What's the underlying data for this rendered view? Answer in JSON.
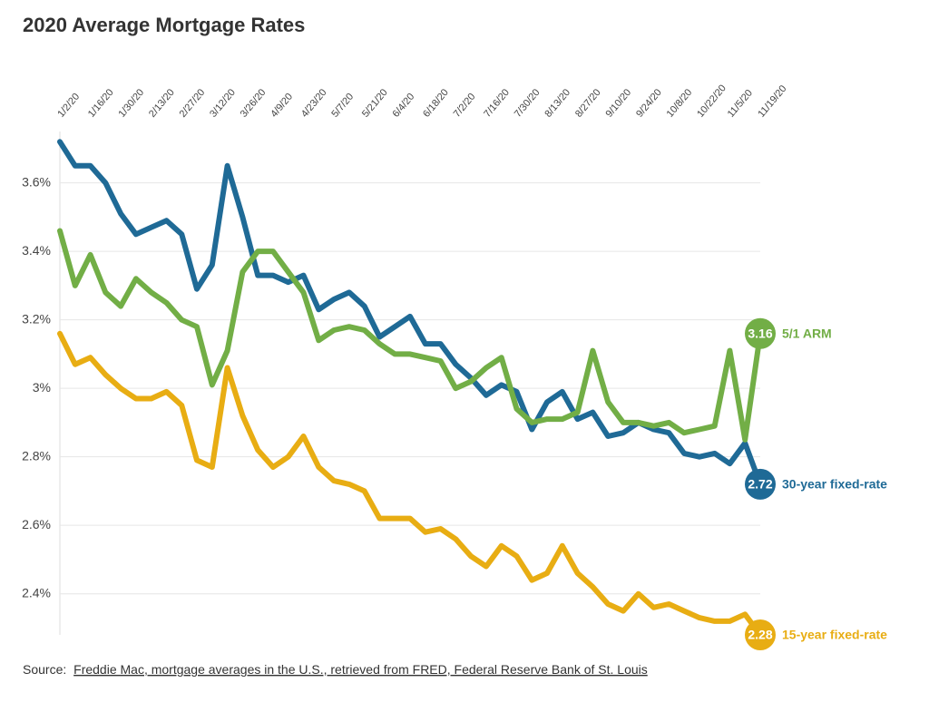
{
  "chart_data": {
    "type": "line",
    "title": "2020 Average Mortgage Rates",
    "categories": [
      "1/2/20",
      null,
      "1/16/20",
      null,
      "1/30/20",
      null,
      "2/13/20",
      null,
      "2/27/20",
      null,
      "3/12/20",
      null,
      "3/26/20",
      null,
      "4/9/20",
      null,
      "4/23/20",
      null,
      "5/7/20",
      null,
      "5/21/20",
      null,
      "6/4/20",
      null,
      "6/18/20",
      null,
      "7/2/20",
      null,
      "7/16/20",
      null,
      "7/30/20",
      null,
      "8/13/20",
      null,
      "8/27/20",
      null,
      "9/10/20",
      null,
      "9/24/20",
      null,
      "10/8/20",
      null,
      "10/22/20",
      null,
      "11/5/20",
      null,
      "11/19/20"
    ],
    "series": [
      {
        "name": "30-year fixed-rate",
        "color": "#1f6a96",
        "values": [
          3.72,
          3.65,
          3.65,
          3.6,
          3.51,
          3.45,
          3.47,
          3.49,
          3.45,
          3.29,
          3.36,
          3.65,
          3.5,
          3.33,
          3.33,
          3.31,
          3.33,
          3.23,
          3.26,
          3.28,
          3.24,
          3.15,
          3.18,
          3.21,
          3.13,
          3.13,
          3.07,
          3.03,
          2.98,
          3.01,
          2.99,
          2.88,
          2.96,
          2.99,
          2.91,
          2.93,
          2.86,
          2.87,
          2.9,
          2.88,
          2.87,
          2.81,
          2.8,
          2.81,
          2.78,
          2.84,
          2.72
        ]
      },
      {
        "name": "15-year fixed-rate",
        "color": "#e8ad13",
        "values": [
          3.16,
          3.07,
          3.09,
          3.04,
          3.0,
          2.97,
          2.97,
          2.99,
          2.95,
          2.79,
          2.77,
          3.06,
          2.92,
          2.82,
          2.77,
          2.8,
          2.86,
          2.77,
          2.73,
          2.72,
          2.7,
          2.62,
          2.62,
          2.62,
          2.58,
          2.59,
          2.56,
          2.51,
          2.48,
          2.54,
          2.51,
          2.44,
          2.46,
          2.54,
          2.46,
          2.42,
          2.37,
          2.35,
          2.4,
          2.36,
          2.37,
          2.35,
          2.33,
          2.32,
          2.32,
          2.34,
          2.28
        ]
      },
      {
        "name": "5/1 ARM",
        "color": "#72ae46",
        "values": [
          3.46,
          3.3,
          3.39,
          3.28,
          3.24,
          3.32,
          3.28,
          3.25,
          3.2,
          3.18,
          3.01,
          3.11,
          3.34,
          3.4,
          3.4,
          3.34,
          3.28,
          3.14,
          3.17,
          3.18,
          3.17,
          3.13,
          3.1,
          3.1,
          3.09,
          3.08,
          3.0,
          3.02,
          3.06,
          3.09,
          2.94,
          2.9,
          2.91,
          2.91,
          2.93,
          3.11,
          2.96,
          2.9,
          2.9,
          2.89,
          2.9,
          2.87,
          2.88,
          2.89,
          3.11,
          2.85,
          3.16
        ]
      }
    ],
    "ylim": [
      2.28,
      3.75
    ],
    "yticks": [
      {
        "value": 2.4,
        "label": "2.4%"
      },
      {
        "value": 2.6,
        "label": "2.6%"
      },
      {
        "value": 2.8,
        "label": "2.8%"
      },
      {
        "value": 3,
        "label": "3%"
      },
      {
        "value": 3.2,
        "label": "3.2%"
      },
      {
        "value": 3.4,
        "label": "3.4%"
      },
      {
        "value": 3.6,
        "label": "3.6%"
      }
    ],
    "grid": true,
    "source_prefix": "Source:",
    "source_link": "Freddie Mac, mortgage averages in the U.S., retrieved from FRED, Federal Reserve Bank of St. Louis"
  }
}
